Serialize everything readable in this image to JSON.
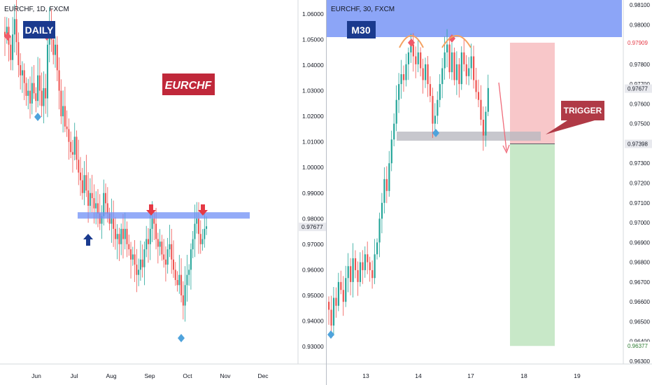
{
  "colors": {
    "up": "#26a69a",
    "down": "#ef5350",
    "zone_blue": "#6f8ff5",
    "badge_navy": "#1a3a8e",
    "badge_red": "#c0283a",
    "arrow_red": "#e53945",
    "arrow_navy": "#1a3a8e",
    "diamond_red": "#ef5b6a",
    "diamond_blue": "#4fa3dc",
    "stop_fill": "#f8c7c9",
    "target_fill": "#c8e8c8",
    "zone_grey": "#b9b9c0",
    "arc_orange": "#f4a261",
    "trigger_bg": "#b03a46"
  },
  "daily": {
    "title": "EURCHF, 1D, FXCM",
    "badge_label": "DAILY",
    "symbol_label": "EURCHF",
    "price_axis": [
      "1.06000",
      "1.05000",
      "1.04000",
      "1.03000",
      "1.02000",
      "1.01000",
      "1.00000",
      "0.99000",
      "0.98000",
      "0.97000",
      "0.96000",
      "0.95000",
      "0.94000",
      "0.93000"
    ],
    "last_price": "0.97677",
    "time_axis": [
      "Jun",
      "Jul",
      "Aug",
      "Sep",
      "Oct",
      "Nov",
      "Dec"
    ],
    "x_start_label": "Jun",
    "resistance_zone": {
      "low": 0.98,
      "high": 0.9825
    },
    "closes": [
      1.051,
      1.055,
      1.048,
      1.042,
      1.052,
      1.058,
      1.049,
      1.04,
      1.036,
      1.038,
      1.033,
      1.028,
      1.03,
      1.025,
      1.033,
      1.029,
      1.026,
      1.036,
      1.03,
      1.024,
      1.031,
      1.027,
      1.048,
      1.056,
      1.05,
      1.044,
      1.048,
      1.038,
      1.03,
      1.02,
      1.024,
      1.016,
      1.015,
      1.01,
      1.006,
      1.005,
      1.012,
      1.003,
      0.998,
      0.995,
      0.99,
      0.997,
      0.991,
      0.985,
      0.99,
      0.988,
      0.984,
      0.986,
      0.982,
      0.978,
      0.981,
      0.99,
      0.986,
      0.982,
      0.978,
      0.98,
      0.976,
      0.972,
      0.974,
      0.97,
      0.976,
      0.972,
      0.976,
      0.97,
      0.968,
      0.964,
      0.966,
      0.962,
      0.958,
      0.96,
      0.964,
      0.961,
      0.968,
      0.972,
      0.97,
      0.976,
      0.98,
      0.978,
      0.972,
      0.969,
      0.971,
      0.966,
      0.964,
      0.962,
      0.968,
      0.97,
      0.964,
      0.96,
      0.956,
      0.954,
      0.958,
      0.95,
      0.946,
      0.954,
      0.958,
      0.96,
      0.968,
      0.972,
      0.978,
      0.98,
      0.974,
      0.97,
      0.972,
      0.976,
      0.977
    ]
  },
  "m30": {
    "title": "EURCHF, 30, FXCM",
    "badge_label": "M30",
    "trigger_label": "TRIGGER",
    "price_axis": [
      "0.98100",
      "0.98000",
      "0.97800",
      "0.97700",
      "0.97600",
      "0.97500",
      "0.97300",
      "0.97200",
      "0.97100",
      "0.97000",
      "0.96900",
      "0.96800",
      "0.96700",
      "0.96600",
      "0.96500",
      "0.96400",
      "0.96300"
    ],
    "stop_price": "0.97909",
    "current_price": "0.97677",
    "entry_price": "0.97398",
    "target_price": "0.96377",
    "time_axis": [
      "13",
      "14",
      "17",
      "18",
      "19"
    ],
    "resistance_zone": {
      "low": 0.9795,
      "high": 0.9815
    },
    "support_zone": {
      "low": 0.97395,
      "high": 0.9743
    },
    "closes": [
      0.9656,
      0.9648,
      0.9662,
      0.9658,
      0.967,
      0.9666,
      0.966,
      0.9672,
      0.9678,
      0.967,
      0.9682,
      0.9676,
      0.967,
      0.968,
      0.9676,
      0.9684,
      0.968,
      0.9676,
      0.9672,
      0.9684,
      0.969,
      0.9702,
      0.971,
      0.9722,
      0.9716,
      0.973,
      0.9742,
      0.975,
      0.9762,
      0.977,
      0.9775,
      0.9772,
      0.978,
      0.9786,
      0.979,
      0.9784,
      0.978,
      0.9786,
      0.9778,
      0.9772,
      0.978,
      0.977,
      0.9764,
      0.975,
      0.9754,
      0.9762,
      0.977,
      0.9778,
      0.9786,
      0.979,
      0.9776,
      0.9786,
      0.9772,
      0.978,
      0.977,
      0.9786,
      0.978,
      0.9774,
      0.9778,
      0.9784,
      0.9772,
      0.9766,
      0.9762,
      0.9752,
      0.9744,
      0.9756,
      0.9768
    ]
  }
}
